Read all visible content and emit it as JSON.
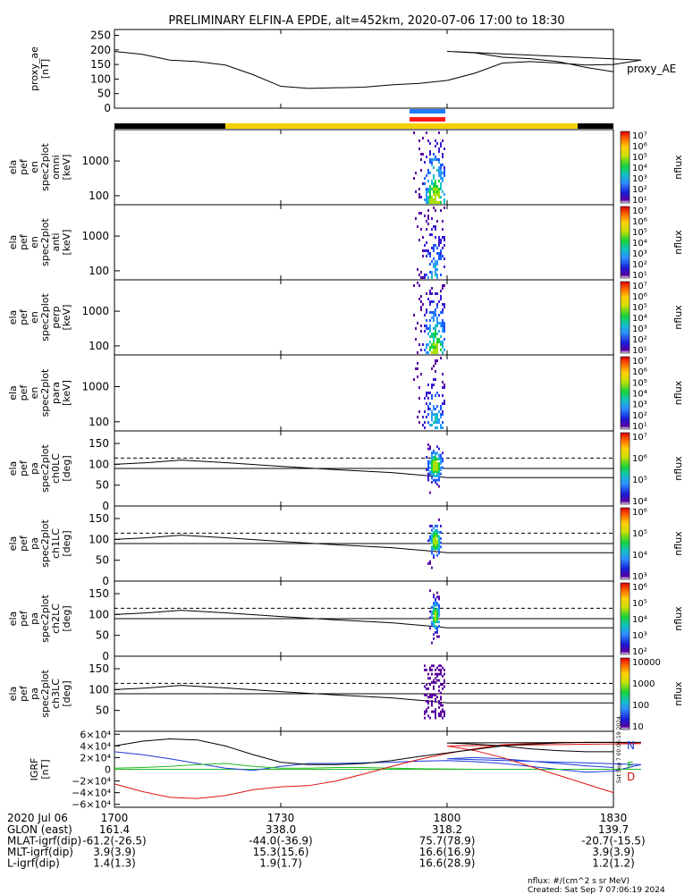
{
  "title": "PRELIMINARY ELFIN-A EPDE, alt=452km, 2020-07-06 17:00 to 18:30",
  "colors": {
    "background": "#ffffff",
    "axes": "#000000",
    "orbit_bar": "#000000",
    "orbit_bar_science": "#f5d000",
    "sci_zone_blue": "#1f7bff",
    "sci_zone_red": "#ff1a1a",
    "igrf_n": "#1c39d8",
    "igrf_e": "#22bb22",
    "igrf_d": "#dd1111",
    "igrf_total": "#000000"
  },
  "chart_data": [
    {
      "panel": "proxy_ae",
      "type": "line",
      "ylabel": [
        "proxy_ae",
        "[nT]"
      ],
      "right_label": "proxy_AE",
      "yticks": [
        0,
        50,
        100,
        150,
        200,
        250
      ],
      "ylim": [
        0,
        270
      ],
      "x": [
        1700,
        1705,
        1710,
        1715,
        1720,
        1725,
        1730,
        1735,
        1740,
        1745,
        1750,
        1755,
        1760,
        1765,
        1770,
        1775,
        1780,
        1785,
        1790,
        1795,
        1800,
        1805,
        1810,
        1815,
        1820,
        1825,
        1830
      ],
      "values": [
        195,
        185,
        165,
        160,
        148,
        115,
        75,
        68,
        70,
        72,
        80,
        85,
        95,
        120,
        155,
        160,
        155,
        148,
        150,
        165,
        195,
        190,
        175,
        170,
        160,
        140,
        125
      ]
    },
    {
      "panel": "ela_pef_en_spec2plot_omni",
      "type": "heatmap",
      "ylabel": [
        "ela",
        "pef",
        "en",
        "spec2plot",
        "omni",
        "[keV]"
      ],
      "ytick_labels": [
        "100",
        "1000"
      ],
      "ylim_keV": [
        55,
        8000
      ],
      "colorbar": {
        "label": "nflux",
        "ticks": [
          "10⁷",
          "10⁶",
          "10⁵",
          "10⁴",
          "10³",
          "10²",
          "10¹"
        ]
      }
    },
    {
      "panel": "ela_pef_en_spec2plot_anti",
      "type": "heatmap",
      "ylabel": [
        "ela",
        "pef",
        "en",
        "spec2plot",
        "anti",
        "[keV]"
      ],
      "ytick_labels": [
        "100",
        "1000"
      ],
      "ylim_keV": [
        55,
        8000
      ],
      "colorbar": {
        "label": "nflux",
        "ticks": [
          "10⁷",
          "10⁶",
          "10⁵",
          "10⁴",
          "10³",
          "10²",
          "10¹"
        ]
      }
    },
    {
      "panel": "ela_pef_en_spec2plot_perp",
      "type": "heatmap",
      "ylabel": [
        "ela",
        "pef",
        "en",
        "spec2plot",
        "perp",
        "[keV]"
      ],
      "ytick_labels": [
        "100",
        "1000"
      ],
      "ylim_keV": [
        55,
        8000
      ],
      "colorbar": {
        "label": "nflux",
        "ticks": [
          "10⁷",
          "10⁶",
          "10⁵",
          "10⁴",
          "10³",
          "10²",
          "10¹"
        ]
      }
    },
    {
      "panel": "ela_pef_en_spec2plot_para",
      "type": "heatmap",
      "ylabel": [
        "ela",
        "pef",
        "en",
        "spec2plot",
        "para",
        "[keV]"
      ],
      "ytick_labels": [
        "100",
        "1000"
      ],
      "ylim_keV": [
        55,
        8000
      ],
      "colorbar": {
        "label": "nflux",
        "ticks": [
          "10⁷",
          "10⁶",
          "10⁵",
          "10⁴",
          "10³",
          "10²",
          "10¹"
        ]
      }
    },
    {
      "panel": "ela_pef_pa_spec2plot_ch0LC",
      "type": "heatmap",
      "ylabel": [
        "ela",
        "pef",
        "pa",
        "spec2plot",
        "ch0LC",
        "[deg]"
      ],
      "ytick_labels": [
        "0",
        "50",
        "100",
        "150"
      ],
      "ylim_deg": [
        0,
        180
      ],
      "colorbar": {
        "label": "nflux",
        "ticks": [
          "10⁷",
          "10⁶",
          "10⁵",
          "10⁴"
        ]
      }
    },
    {
      "panel": "ela_pef_pa_spec2plot_ch1LC",
      "type": "heatmap",
      "ylabel": [
        "ela",
        "pef",
        "pa",
        "spec2plot",
        "ch1LC",
        "[deg]"
      ],
      "ytick_labels": [
        "0",
        "50",
        "100",
        "150"
      ],
      "ylim_deg": [
        0,
        180
      ],
      "colorbar": {
        "label": "nflux",
        "ticks": [
          "10⁶",
          "10⁵",
          "10⁴",
          "10³"
        ]
      }
    },
    {
      "panel": "ela_pef_pa_spec2plot_ch2LC",
      "type": "heatmap",
      "ylabel": [
        "ela",
        "pef",
        "pa",
        "spec2plot",
        "ch2LC",
        "[deg]"
      ],
      "ytick_labels": [
        "0",
        "50",
        "100",
        "150"
      ],
      "ylim_deg": [
        0,
        180
      ],
      "colorbar": {
        "label": "nflux",
        "ticks": [
          "10⁶",
          "10⁵",
          "10⁴",
          "10³",
          "10²"
        ]
      }
    },
    {
      "panel": "ela_pef_pa_spec2plot_ch3LC",
      "type": "heatmap",
      "ylabel": [
        "ela",
        "pef",
        "pa",
        "spec2plot",
        "ch3LC",
        "[deg]"
      ],
      "ytick_labels": [
        "50",
        "100",
        "150"
      ],
      "ylim_deg": [
        0,
        180
      ],
      "colorbar": {
        "label": "nflux",
        "ticks": [
          "10000",
          "1000",
          "100",
          "10"
        ]
      }
    },
    {
      "panel": "IGRF",
      "type": "line",
      "ylabel": [
        "IGRF",
        "[nT]"
      ],
      "ytick_labels": [
        "6×10⁴",
        "4×10⁴",
        "2×10⁴",
        "0",
        "−2×10⁴",
        "−4×10⁴",
        "−6×10⁴"
      ],
      "ylim": [
        -65000,
        65000
      ],
      "legend": [
        "N",
        "E",
        "D"
      ],
      "stamp": "Sat Sep  7 00:06:19 2024",
      "x": [
        1700,
        1705,
        1710,
        1715,
        1720,
        1725,
        1730,
        1735,
        1740,
        1745,
        1750,
        1755,
        1760,
        1765,
        1770,
        1775,
        1780,
        1785,
        1790,
        1795,
        1800,
        1805,
        1810,
        1815,
        1820,
        1825,
        1830
      ],
      "series": [
        {
          "name": "N",
          "values": [
            30000,
            25000,
            18000,
            10000,
            2000,
            -2000,
            5000,
            10000,
            10000,
            11000,
            12000,
            14000,
            15000,
            13000,
            10000,
            5000,
            0,
            -5000,
            -3000,
            8000,
            18000,
            20000,
            18000,
            14000,
            10000,
            6000,
            3000
          ]
        },
        {
          "name": "E",
          "values": [
            2000,
            3000,
            5000,
            8000,
            10000,
            5000,
            2000,
            2000,
            3000,
            3000,
            2000,
            1000,
            500,
            0,
            0,
            0,
            0,
            0,
            0,
            0,
            0,
            0,
            0,
            0,
            0,
            0,
            0
          ]
        },
        {
          "name": "D",
          "values": [
            -25000,
            -38000,
            -48000,
            -50000,
            -45000,
            -35000,
            -30000,
            -28000,
            -20000,
            -8000,
            5000,
            17000,
            27000,
            35000,
            42000,
            44000,
            46000,
            46000,
            46000,
            44000,
            40000,
            32000,
            20000,
            5000,
            -10000,
            -25000,
            -40000
          ]
        },
        {
          "name": "",
          "values": [
            40000,
            48000,
            52000,
            50000,
            40000,
            25000,
            12000,
            8000,
            8000,
            10000,
            15000,
            22000,
            28000,
            34000,
            40000,
            43000,
            45000,
            46000,
            46000,
            46000,
            45000,
            43000,
            40000,
            35000,
            32000,
            30000,
            30000
          ]
        }
      ]
    }
  ],
  "xticks": [
    "1700",
    "1730",
    "1800",
    "1830"
  ],
  "footer": {
    "date_label": "2020 Jul 06",
    "rows": [
      {
        "label": "GLON (east)",
        "values": [
          "161.4",
          "338.0",
          "318.2",
          "139.7"
        ]
      },
      {
        "label": "MLAT-igrf(dip)",
        "values": [
          "-61.2(-26.5)",
          "-44.0(-36.9)",
          "75.7(78.9)",
          "-20.7(-15.5)"
        ]
      },
      {
        "label": "MLT-igrf(dip)",
        "values": [
          "3.9(3.9)",
          "15.3(15.6)",
          "16.6(16.9)",
          "3.9(3.9)"
        ]
      },
      {
        "label": "L-igrf(dip)",
        "values": [
          "1.4(1.3)",
          "1.9(1.7)",
          "16.6(28.9)",
          "1.2(1.2)"
        ]
      }
    ],
    "units_note": "nflux: #/(cm^2 s sr MeV)",
    "created": "Created: Sat Sep  7 07:06:19 2024"
  }
}
